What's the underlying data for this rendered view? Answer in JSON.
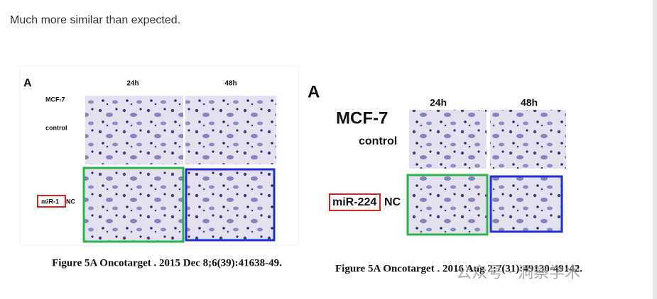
{
  "lead_text": "Much more similar than expected.",
  "figures": [
    {
      "panel": "A",
      "columns": [
        "24h",
        "48h"
      ],
      "cell_line": "MCF-7",
      "row_top": "control",
      "row_bottom": "miR-1",
      "row_bottom_suffix": "NC",
      "caption": "Figure 5A Oncotarget . 2015 Dec 8;6(39):41638-49."
    },
    {
      "panel": "A",
      "columns": [
        "24h",
        "48h"
      ],
      "cell_line": "MCF-7",
      "row_top": "control",
      "row_bottom": "miR-224",
      "row_bottom_suffix": "NC",
      "caption": "Figure 5A Oncotarget . 2016 Aug 2;7(31):49130-49142."
    }
  ],
  "watermark": "公众号 · 洞察学术"
}
